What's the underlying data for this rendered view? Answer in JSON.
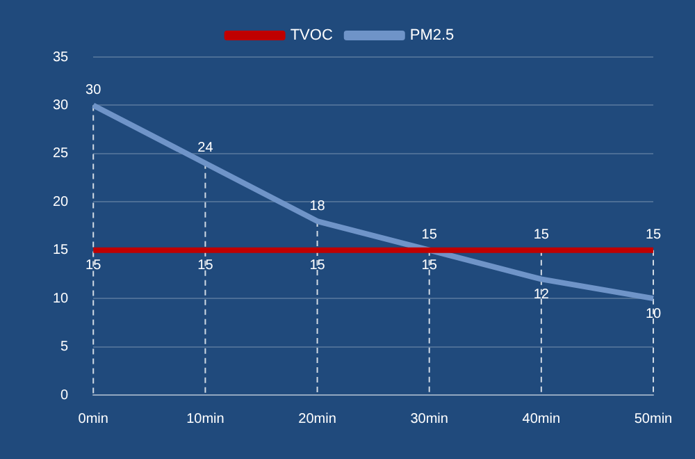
{
  "chart_data": {
    "type": "line",
    "categories": [
      "0min",
      "10min",
      "20min",
      "30min",
      "40min",
      "50min"
    ],
    "series": [
      {
        "name": "TVOC",
        "color": "#c00000",
        "values": [
          15,
          15,
          15,
          15,
          15,
          15
        ]
      },
      {
        "name": "PM2.5",
        "color": "#6f94c8",
        "values": [
          30,
          24,
          18,
          15,
          12,
          10
        ]
      }
    ],
    "ylim": [
      0,
      35
    ],
    "yticks": [
      0,
      5,
      10,
      15,
      20,
      25,
      30,
      35
    ],
    "grid": "y",
    "legend": "top",
    "data_labels": true,
    "marker": "none",
    "line_style": "solid"
  }
}
